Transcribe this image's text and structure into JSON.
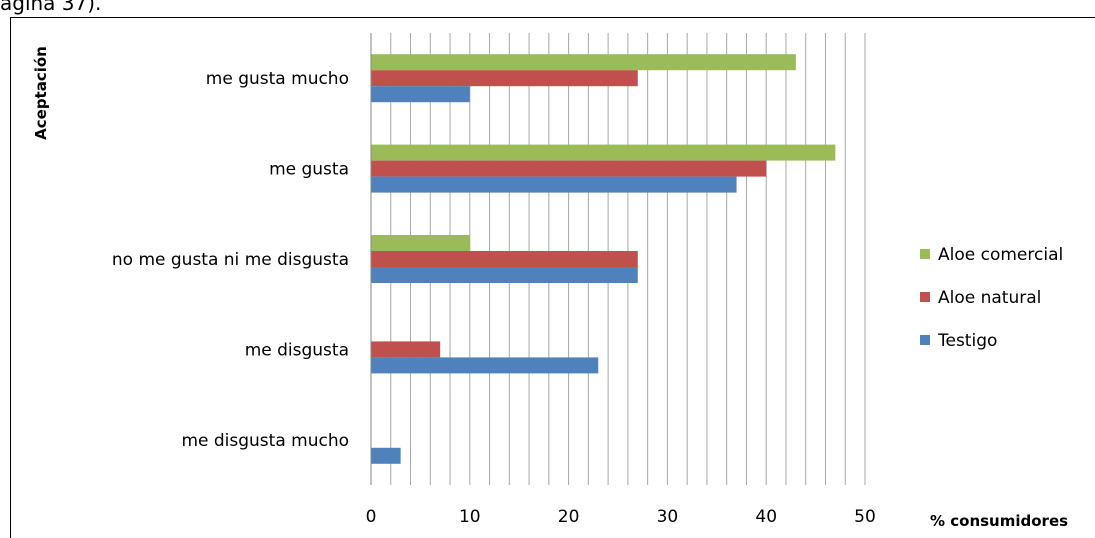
{
  "caption": "ágina 37).",
  "chart_data": {
    "type": "bar",
    "orientation": "horizontal",
    "categories": [
      "me gusta mucho",
      "me gusta",
      "no me gusta ni me disgusta",
      "me disgusta",
      "me disgusta mucho"
    ],
    "series": [
      {
        "name": "Aloe comercial",
        "color": "#9bbb59",
        "values": [
          43,
          47,
          10,
          0,
          0
        ]
      },
      {
        "name": "Aloe natural",
        "color": "#c0504d",
        "values": [
          27,
          40,
          27,
          7,
          0
        ]
      },
      {
        "name": "Testigo",
        "color": "#4f81bd",
        "values": [
          10,
          37,
          27,
          23,
          3
        ]
      }
    ],
    "xlabel": "% consumidores",
    "ylabel": "Aceptación",
    "xlim": [
      0,
      50
    ],
    "x_ticks": [
      0,
      10,
      20,
      30,
      40,
      50
    ],
    "grid": "vertical",
    "legend_position": "right"
  }
}
